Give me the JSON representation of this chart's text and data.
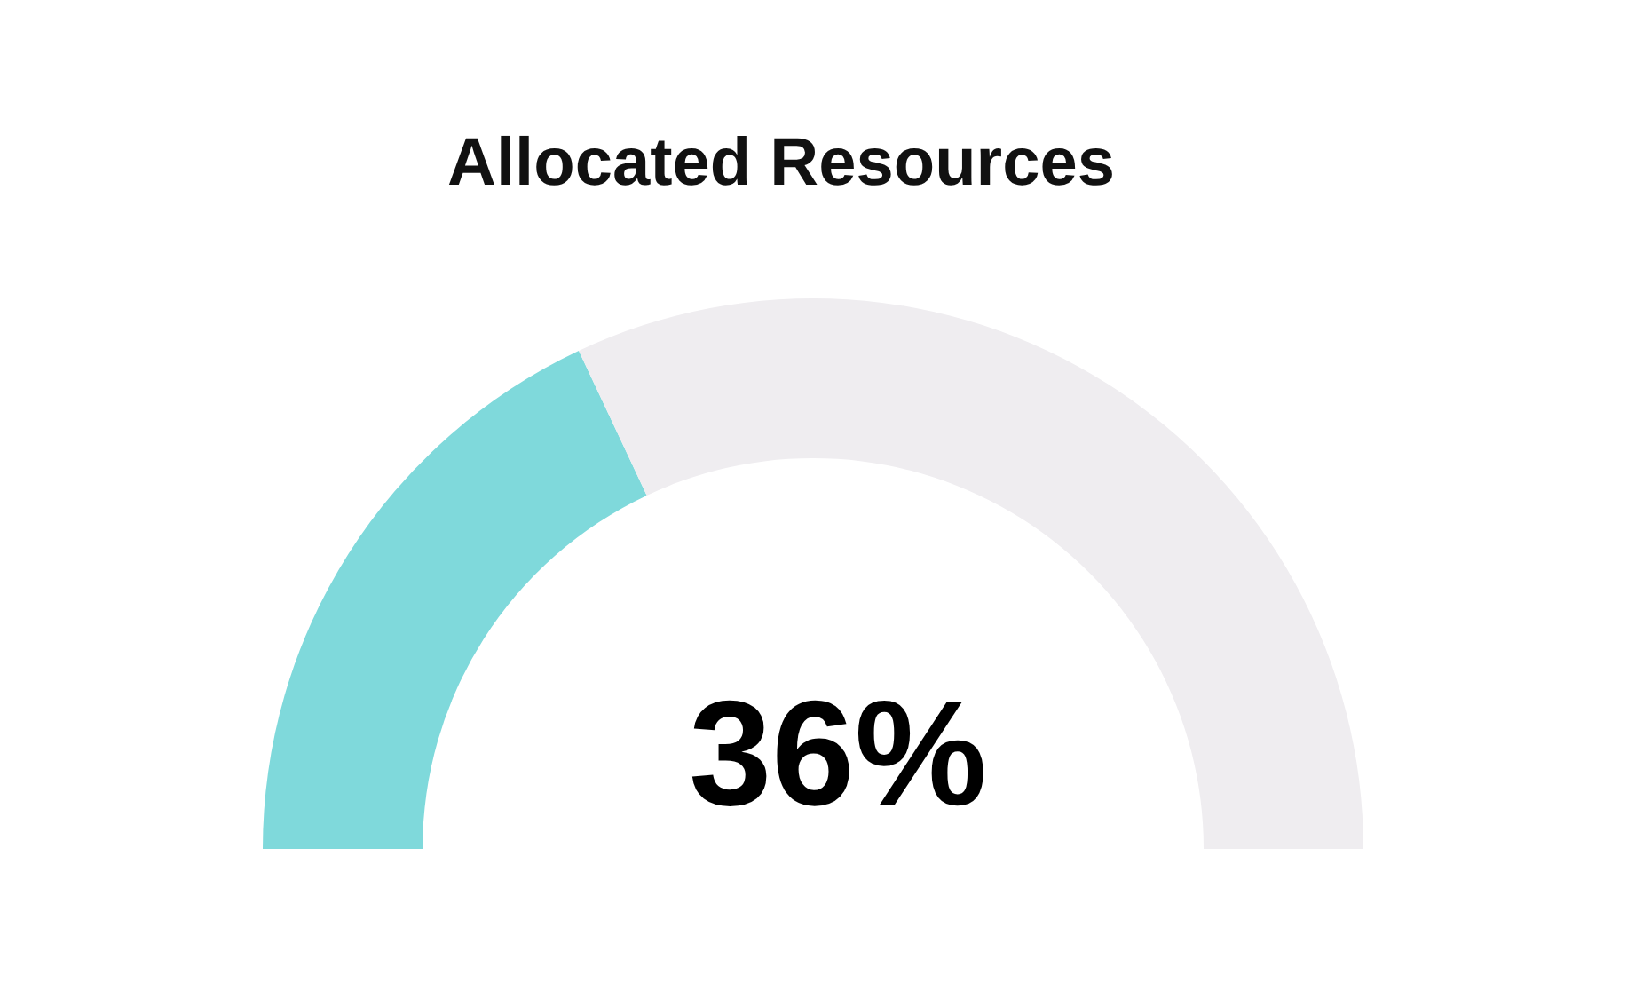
{
  "chart_data": {
    "type": "donut",
    "title": "Allocated Resources",
    "categories": [
      null,
      null
    ],
    "values": [
      36,
      64
    ],
    "colors": [
      "#7fd9db",
      "#efedf0"
    ],
    "annotations": [
      "36%"
    ]
  }
}
